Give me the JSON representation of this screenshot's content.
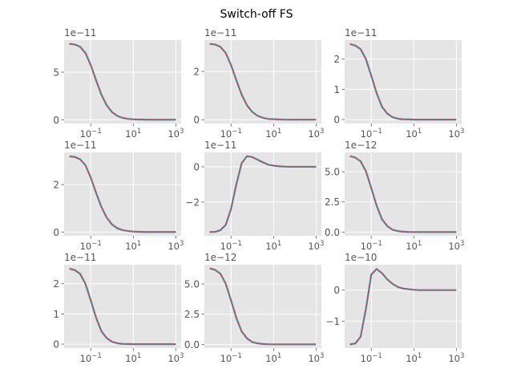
{
  "chart_data": {
    "title": "Switch-off FS",
    "layout": "3x3 grid",
    "style": {
      "background": "#E5E5E5",
      "grid": "#FFFFFF",
      "text": "#555555"
    },
    "x_scale": "log",
    "x": [
      0.01,
      0.0178,
      0.0316,
      0.0562,
      0.1,
      0.178,
      0.316,
      0.562,
      1,
      1.78,
      3.16,
      5.62,
      10,
      17.8,
      31.6,
      56.2,
      100,
      178,
      316,
      562,
      1000
    ],
    "xlim": [
      0.00562,
      1778
    ],
    "xticks": [
      {
        "base": "10",
        "exp": "−1",
        "value": 0.1
      },
      {
        "base": "10",
        "exp": "1",
        "value": 10
      },
      {
        "base": "10",
        "exp": "3",
        "value": 1000
      }
    ],
    "series_styles": [
      {
        "color": "#348ABD",
        "line": "solid"
      },
      {
        "color": "#E24A33",
        "line": "dashed"
      }
    ],
    "panels": [
      {
        "type": "line",
        "offset": "1e−11",
        "ylim": [
          -0.4,
          8.38
        ],
        "yticks": [
          {
            "v": 0,
            "label": "0"
          },
          {
            "v": 5,
            "label": "5"
          }
        ],
        "values": [
          7.98,
          7.92,
          7.68,
          7.04,
          5.76,
          4.16,
          2.64,
          1.52,
          0.8,
          0.4,
          0.19,
          0.09,
          0.04,
          0.02,
          0.01,
          0,
          0,
          0,
          0,
          0,
          0
        ]
      },
      {
        "type": "line",
        "offset": "1e−11",
        "ylim": [
          -0.16,
          3.3
        ],
        "yticks": [
          {
            "v": 0,
            "label": "0"
          },
          {
            "v": 2,
            "label": "2"
          }
        ],
        "values": [
          3.14,
          3.12,
          3.02,
          2.77,
          2.27,
          1.64,
          1.04,
          0.6,
          0.32,
          0.16,
          0.08,
          0.03,
          0.02,
          0.01,
          0,
          0,
          0,
          0,
          0,
          0,
          0
        ]
      },
      {
        "type": "line",
        "offset": "1e−11",
        "ylim": [
          -0.13,
          2.63
        ],
        "yticks": [
          {
            "v": 0,
            "label": "0"
          },
          {
            "v": 1,
            "label": "1"
          },
          {
            "v": 2,
            "label": "2"
          }
        ],
        "values": [
          2.5,
          2.45,
          2.33,
          2.0,
          1.45,
          0.88,
          0.43,
          0.2,
          0.08,
          0.03,
          0.01,
          0.005,
          0,
          0,
          0,
          0,
          0,
          0,
          0,
          0,
          0
        ]
      },
      {
        "type": "line",
        "offset": "1e−11",
        "ylim": [
          -0.16,
          3.36
        ],
        "yticks": [
          {
            "v": 0,
            "label": "0"
          },
          {
            "v": 2,
            "label": "2"
          }
        ],
        "values": [
          3.19,
          3.17,
          3.07,
          2.82,
          2.3,
          1.66,
          1.06,
          0.61,
          0.32,
          0.16,
          0.08,
          0.04,
          0.02,
          0.01,
          0,
          0,
          0,
          0,
          0,
          0,
          0
        ]
      },
      {
        "type": "line",
        "offset": "1e−11",
        "ylim": [
          -3.915,
          0.815
        ],
        "yticks": [
          {
            "v": -2,
            "label": "−2"
          },
          {
            "v": 0,
            "label": "0"
          }
        ],
        "values": [
          -3.7,
          -3.69,
          -3.6,
          -3.3,
          -2.4,
          -1.0,
          0.2,
          0.6,
          0.55,
          0.4,
          0.25,
          0.12,
          0.06,
          0.03,
          0.01,
          0,
          0,
          0,
          0,
          0,
          0
        ]
      },
      {
        "type": "line",
        "offset": "1e−12",
        "ylim": [
          -0.31,
          6.6
        ],
        "yticks": [
          {
            "v": 0,
            "label": "0.0"
          },
          {
            "v": 2.5,
            "label": "2.5"
          },
          {
            "v": 5,
            "label": "5.0"
          }
        ],
        "values": [
          6.29,
          6.17,
          5.86,
          5.04,
          3.65,
          2.2,
          1.07,
          0.5,
          0.19,
          0.08,
          0.03,
          0.01,
          0,
          0,
          0,
          0,
          0,
          0,
          0,
          0,
          0
        ]
      },
      {
        "type": "line",
        "offset": "1e−11",
        "ylim": [
          -0.13,
          2.63
        ],
        "yticks": [
          {
            "v": 0,
            "label": "0"
          },
          {
            "v": 1,
            "label": "1"
          },
          {
            "v": 2,
            "label": "2"
          }
        ],
        "values": [
          2.5,
          2.45,
          2.33,
          2.0,
          1.45,
          0.88,
          0.43,
          0.2,
          0.08,
          0.03,
          0.01,
          0.005,
          0,
          0,
          0,
          0,
          0,
          0,
          0,
          0,
          0
        ]
      },
      {
        "type": "line",
        "offset": "1e−12",
        "ylim": [
          -0.31,
          6.6
        ],
        "yticks": [
          {
            "v": 0,
            "label": "0.0"
          },
          {
            "v": 2.5,
            "label": "2.5"
          },
          {
            "v": 5,
            "label": "5.0"
          }
        ],
        "values": [
          6.29,
          6.17,
          5.86,
          5.04,
          3.65,
          2.2,
          1.07,
          0.5,
          0.19,
          0.08,
          0.03,
          0.01,
          0,
          0,
          0,
          0,
          0,
          0,
          0,
          0,
          0
        ]
      },
      {
        "type": "line",
        "offset": "1e−10",
        "ylim": [
          -1.87,
          0.82
        ],
        "yticks": [
          {
            "v": -1,
            "label": "−1"
          },
          {
            "v": 0,
            "label": "0"
          }
        ],
        "values": [
          -1.75,
          -1.72,
          -1.5,
          -0.6,
          0.5,
          0.68,
          0.55,
          0.35,
          0.2,
          0.1,
          0.05,
          0.03,
          0.01,
          0,
          0,
          0,
          0,
          0,
          0,
          0,
          0
        ]
      }
    ]
  }
}
